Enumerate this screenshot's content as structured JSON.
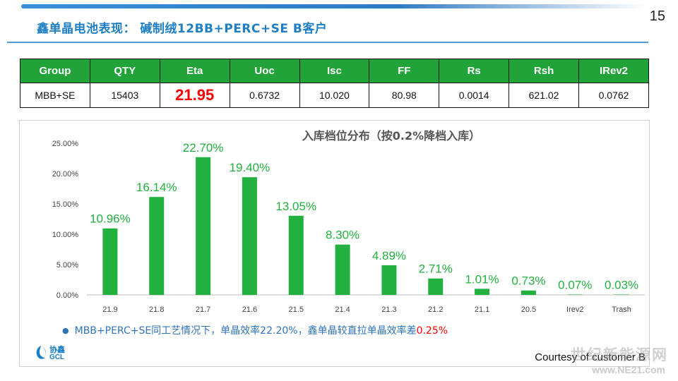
{
  "header": {
    "title": "鑫单晶电池表现： 碱制绒12BB+PERC+SE    B客户",
    "page_number": "15"
  },
  "table": {
    "headers": [
      "Group",
      "QTY",
      "Eta",
      "Uoc",
      "Isc",
      "FF",
      "Rs",
      "Rsh",
      "IRev2"
    ],
    "row": [
      "MBB+SE",
      "15403",
      "21.95",
      "0.6732",
      "10.020",
      "80.98",
      "0.0014",
      "621.02",
      "0.0762"
    ]
  },
  "chart_data": {
    "type": "bar",
    "title": "入库档位分布（按0.2%降档入库）",
    "categories": [
      "21.9",
      "21.8",
      "21.7",
      "21.6",
      "21.5",
      "21.4",
      "21.3",
      "21.2",
      "21.1",
      "20.5",
      "Irev2",
      "Trash"
    ],
    "values": [
      10.96,
      16.14,
      22.7,
      19.4,
      13.05,
      8.3,
      4.89,
      2.71,
      1.01,
      0.73,
      0.07,
      0.03
    ],
    "data_labels": [
      "10.96%",
      "16.14%",
      "22.70%",
      "19.40%",
      "13.05%",
      "8.30%",
      "4.89%",
      "2.71%",
      "1.01%",
      "0.73%",
      "0.07%",
      "0.03%"
    ],
    "yticks": [
      "0.00%",
      "5.00%",
      "10.00%",
      "15.00%",
      "20.00%",
      "25.00%"
    ],
    "ylim": [
      0,
      25
    ],
    "bar_color": "#22b040",
    "label_color": "#22b040",
    "grid": false,
    "legend": "none"
  },
  "note": {
    "text": "MBB+PERC+SE同工艺情况下，单晶效率22.20%，鑫单晶较直拉单晶效率差",
    "highlight": "0.25%"
  },
  "logo": {
    "cn": "协鑫",
    "en": "GCL"
  },
  "courtesy": "Courtesy of customer B",
  "watermark": {
    "text": "世纪新能源网",
    "url": "www.NE21.com"
  }
}
